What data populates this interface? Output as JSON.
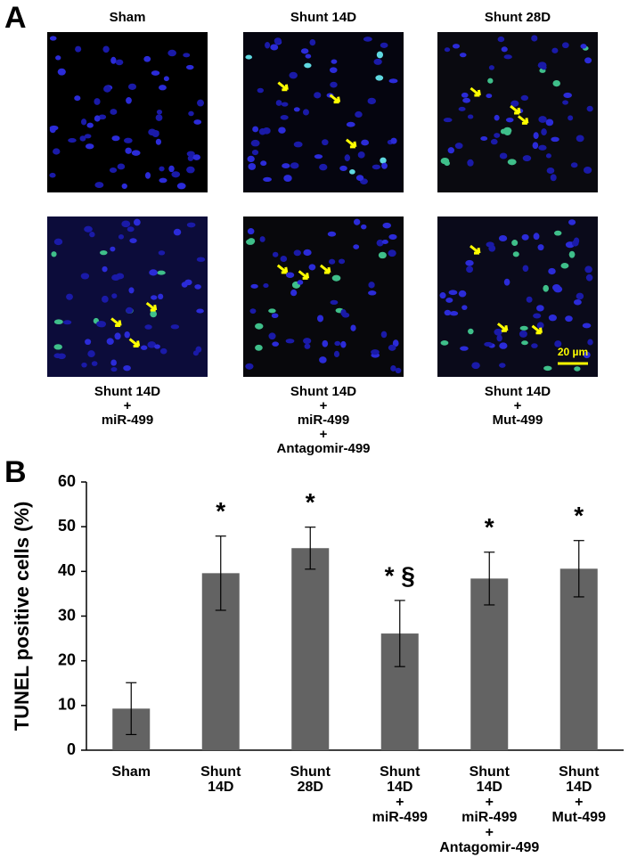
{
  "panel_labels": [
    "A",
    "B"
  ],
  "panel_a": {
    "images": [
      {
        "label": [
          "Sham"
        ]
      },
      {
        "label": [
          "Shunt 14D"
        ]
      },
      {
        "label": [
          "Shunt 28D"
        ]
      },
      {
        "label": [
          "Shunt 14D",
          "+",
          "miR-499"
        ]
      },
      {
        "label": [
          "Shunt 14D",
          "+",
          "miR-499",
          "+",
          "Antagomir-499"
        ]
      },
      {
        "label": [
          "Shunt 14D",
          "+",
          "Mut-499"
        ]
      }
    ],
    "scale_bar": "20 µm"
  },
  "chart_data": {
    "type": "bar",
    "y_label": "TUNEL positive cells (%)",
    "categories": [
      [
        "Sham"
      ],
      [
        "Shunt",
        "14D"
      ],
      [
        "Shunt",
        "28D"
      ],
      [
        "Shunt",
        "14D",
        "+",
        "miR-499"
      ],
      [
        "Shunt",
        "14D",
        "+",
        "miR-499",
        "+",
        "Antagomir-499"
      ],
      [
        "Shunt",
        "14D",
        "+",
        "Mut-499"
      ]
    ],
    "values": [
      9.3,
      39.6,
      45.2,
      26.1,
      38.4,
      40.6
    ],
    "errors": [
      5.8,
      8.3,
      4.7,
      7.4,
      5.9,
      6.3
    ],
    "annotations": [
      null,
      "*",
      "*",
      "* §",
      "*",
      "*"
    ],
    "color": "#636363",
    "ylim": [
      0,
      60
    ],
    "yticks": [
      0,
      10,
      20,
      30,
      40,
      50,
      60
    ]
  }
}
